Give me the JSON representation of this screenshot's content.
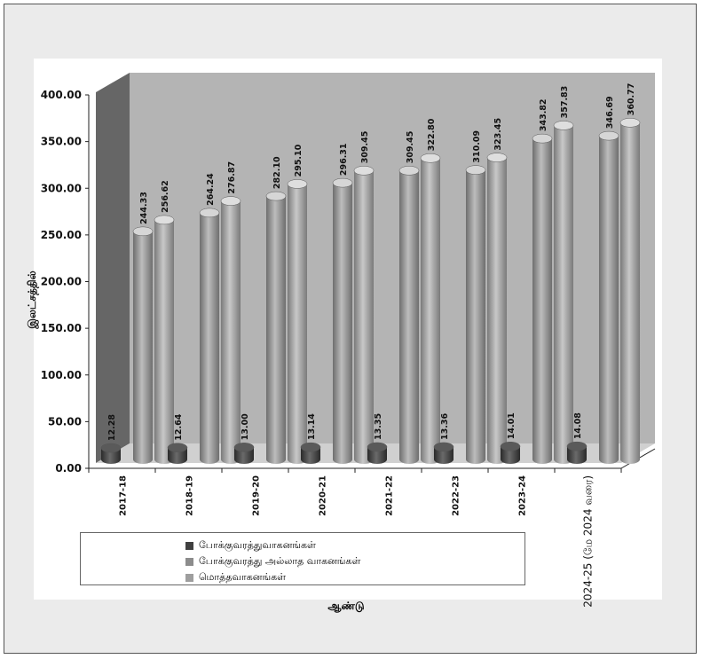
{
  "chart_data": {
    "type": "bar",
    "title": "",
    "xlabel": "ஆண்டு",
    "ylabel": "இலட்சத்தில்",
    "ylim": [
      0,
      400
    ],
    "yticks": [
      "0.00",
      "50.00",
      "100.00",
      "150.00",
      "200.00",
      "250.00",
      "300.00",
      "350.00",
      "400.00"
    ],
    "categories": [
      "2017-18",
      "2018-19",
      "2019-20",
      "2020-21",
      "2021-22",
      "2022-23",
      "2023-24",
      "2024-25 (மே 2024 வரை)"
    ],
    "series": [
      {
        "name": "போக்குவரத்துவாகனங்கள்",
        "color": "#404040",
        "values": [
          12.28,
          12.64,
          13.0,
          13.14,
          13.35,
          13.36,
          14.01,
          14.08
        ],
        "labels": [
          "12.28",
          "12.64",
          "13.00",
          "13.14",
          "13.35",
          "13.36",
          "14.01",
          "14.08"
        ]
      },
      {
        "name": "போக்குவரத்து அல்லாத வாகனங்கள்",
        "color": "#8c8c8c",
        "values": [
          244.33,
          264.24,
          282.1,
          296.31,
          309.45,
          310.09,
          343.82,
          346.69
        ],
        "labels": [
          "244.33",
          "264.24",
          "282.10",
          "296.31",
          "309.45",
          "310.09",
          "343.82",
          "346.69"
        ]
      },
      {
        "name": "மொத்தவாகனங்கள்",
        "color": "#9e9e9e",
        "values": [
          256.62,
          276.87,
          295.1,
          309.45,
          322.8,
          323.45,
          357.83,
          360.77
        ],
        "labels": [
          "256.62",
          "276.87",
          "295.10",
          "309.45",
          "322.80",
          "323.45",
          "357.83",
          "360.77"
        ]
      }
    ],
    "legend_position": "bottom",
    "grid": false
  }
}
